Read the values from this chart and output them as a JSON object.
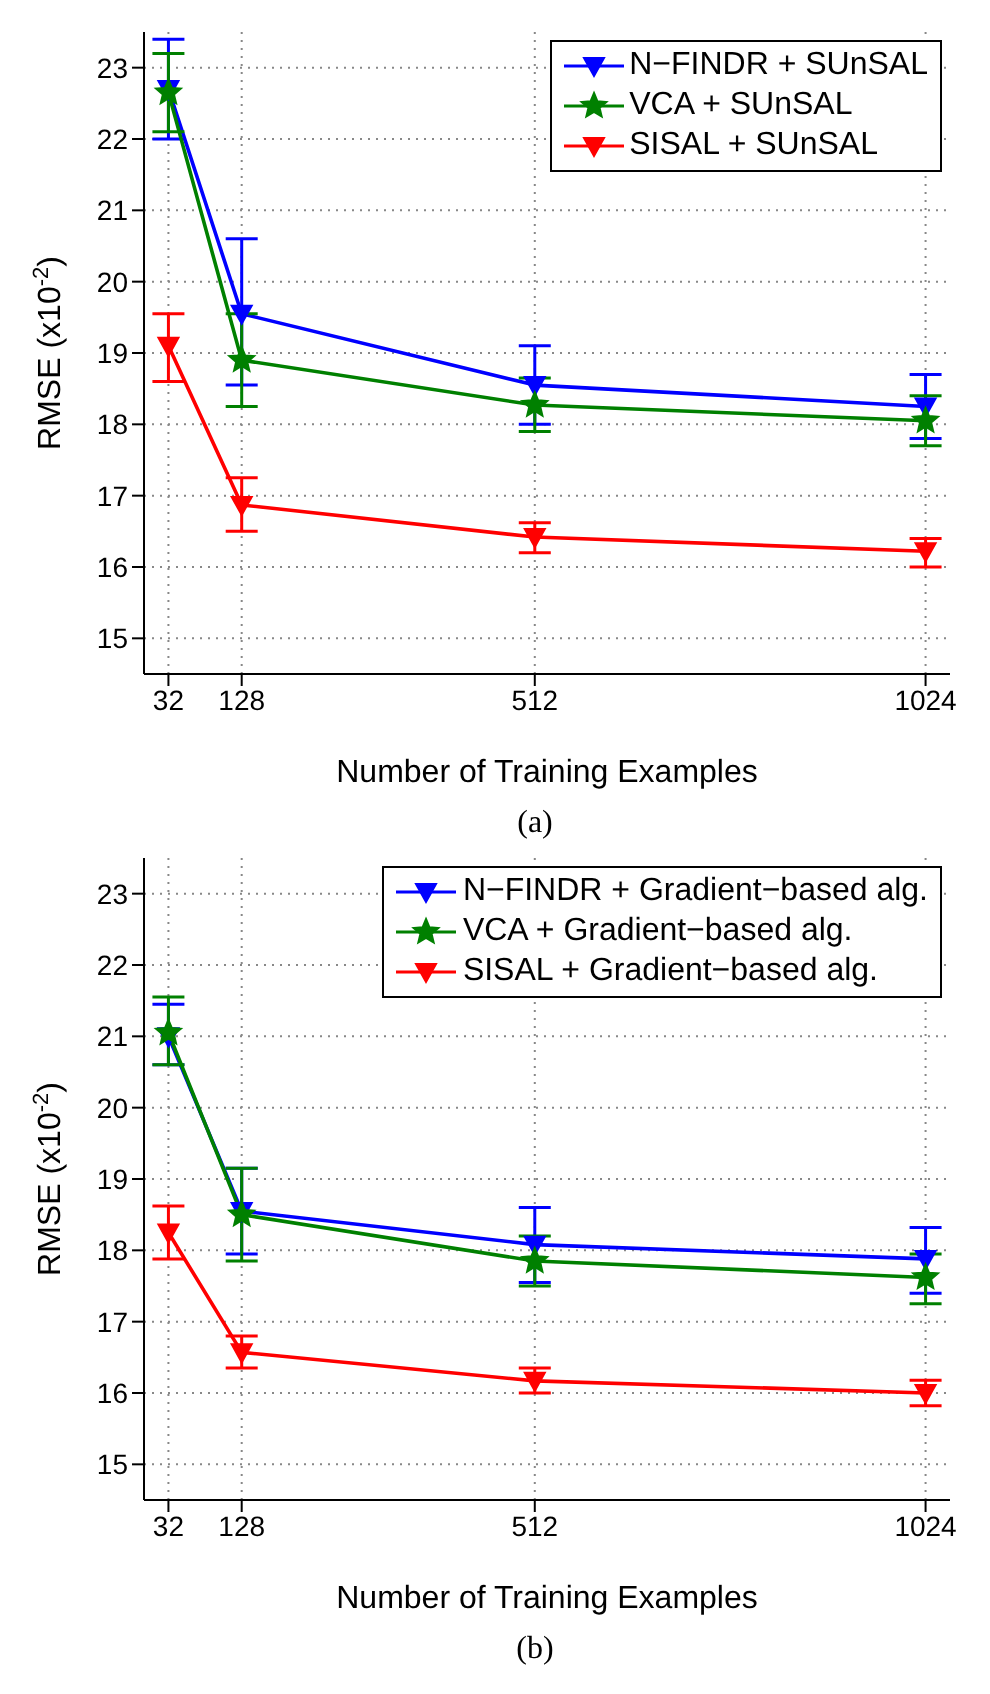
{
  "chart_data": [
    {
      "type": "line",
      "xlabel": "Number of Training Examples",
      "ylabel": "RMSE (x10$^{-2}$)",
      "annotations": [
        "(a)"
      ],
      "x": [
        32,
        128,
        512,
        1024
      ],
      "xlim": [
        0,
        1056
      ],
      "xticks": [
        32,
        128,
        512,
        1024
      ],
      "ylim": [
        14.5,
        23.5
      ],
      "yticks": [
        15,
        16,
        17,
        18,
        19,
        20,
        21,
        22,
        23
      ],
      "grid": true,
      "legend": "top right",
      "line_style": "solid",
      "series": [
        {
          "name": "N−FINDR + SUnSAL",
          "color": "#0000ff",
          "marker": "triangle",
          "values": [
            22.7,
            19.55,
            18.55,
            18.25
          ],
          "errors": [
            [
              22.0,
              23.4
            ],
            [
              18.55,
              20.6
            ],
            [
              18.0,
              19.1
            ],
            [
              17.8,
              18.7
            ]
          ]
        },
        {
          "name": "VCA + SUnSAL",
          "color": "#008000",
          "marker": "star",
          "values": [
            22.65,
            18.9,
            18.27,
            18.05
          ],
          "errors": [
            [
              22.1,
              23.2
            ],
            [
              18.25,
              19.55
            ],
            [
              17.9,
              18.65
            ],
            [
              17.7,
              18.4
            ]
          ]
        },
        {
          "name": "SISAL + SUnSAL",
          "color": "#ff0000",
          "marker": "triangle",
          "values": [
            19.1,
            16.87,
            16.42,
            16.22
          ],
          "errors": [
            [
              18.6,
              19.55
            ],
            [
              16.5,
              17.25
            ],
            [
              16.2,
              16.62
            ],
            [
              16.0,
              16.4
            ]
          ]
        }
      ]
    },
    {
      "type": "line",
      "xlabel": "Number of Training Examples",
      "ylabel": "RMSE (x10$^{-2}$)",
      "annotations": [
        "(b)"
      ],
      "x": [
        32,
        128,
        512,
        1024
      ],
      "xlim": [
        0,
        1056
      ],
      "xticks": [
        32,
        128,
        512,
        1024
      ],
      "ylim": [
        14.5,
        23.5
      ],
      "yticks": [
        15,
        16,
        17,
        18,
        19,
        20,
        21,
        22,
        23
      ],
      "grid": true,
      "legend": "top right",
      "line_style": "solid",
      "series": [
        {
          "name": "N−FINDR + Gradient−based alg.",
          "color": "#0000ff",
          "marker": "triangle",
          "values": [
            21.0,
            18.55,
            18.08,
            17.88
          ],
          "errors": [
            [
              20.6,
              21.45
            ],
            [
              17.95,
              19.15
            ],
            [
              17.55,
              18.6
            ],
            [
              17.4,
              18.32
            ]
          ]
        },
        {
          "name": "VCA + Gradient−based alg.",
          "color": "#008000",
          "marker": "star",
          "values": [
            21.05,
            18.5,
            17.85,
            17.62
          ],
          "errors": [
            [
              20.6,
              21.55
            ],
            [
              17.85,
              19.15
            ],
            [
              17.5,
              18.2
            ],
            [
              17.25,
              17.95
            ]
          ]
        },
        {
          "name": "SISAL + Gradient−based alg.",
          "color": "#ff0000",
          "marker": "triangle",
          "values": [
            18.25,
            16.57,
            16.17,
            16.0
          ],
          "errors": [
            [
              17.88,
              18.62
            ],
            [
              16.35,
              16.8
            ],
            [
              16.0,
              16.35
            ],
            [
              15.82,
              16.18
            ]
          ]
        }
      ]
    }
  ]
}
